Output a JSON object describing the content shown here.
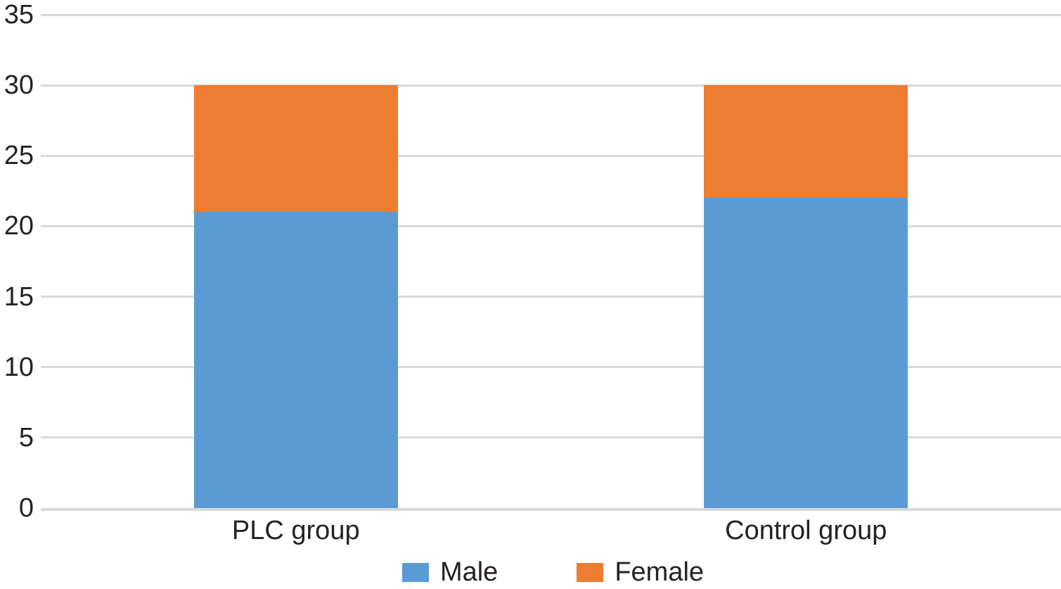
{
  "chart_data": {
    "type": "bar",
    "stacked": true,
    "title": "",
    "xlabel": "",
    "ylabel": "",
    "categories": [
      "PLC group",
      "Control group"
    ],
    "series": [
      {
        "name": "Male",
        "color": "#5B9BD5",
        "values": [
          21,
          22
        ]
      },
      {
        "name": "Female",
        "color": "#ED7D31",
        "values": [
          9,
          8
        ]
      }
    ],
    "totals": [
      30,
      30
    ],
    "ylim": [
      0,
      35
    ],
    "yticks": [
      0,
      5,
      10,
      15,
      20,
      25,
      30,
      35
    ],
    "grid": true,
    "legend_position": "bottom",
    "colors": {
      "grid": "#D9D9D9",
      "text": "#262123",
      "background": "#FFFFFF"
    }
  }
}
